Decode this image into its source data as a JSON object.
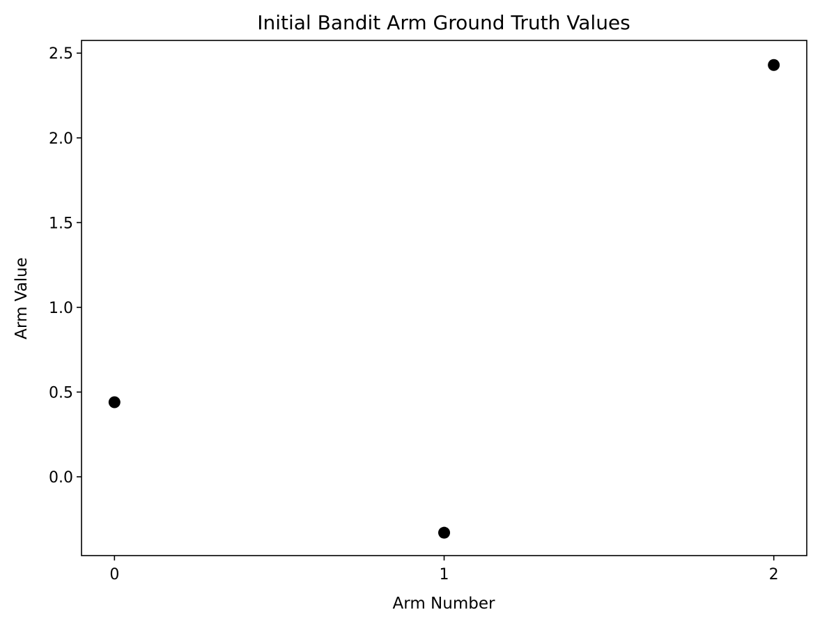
{
  "chart_data": {
    "type": "scatter",
    "title": "Initial Bandit Arm Ground Truth Values",
    "xlabel": "Arm Number",
    "ylabel": "Arm Value",
    "xlim": [
      -0.1,
      2.1
    ],
    "ylim": [
      -0.465,
      2.575
    ],
    "x_ticks": [
      0,
      1,
      2
    ],
    "x_tick_labels": [
      "0",
      "1",
      "2"
    ],
    "y_ticks": [
      0.0,
      0.5,
      1.0,
      1.5,
      2.0,
      2.5
    ],
    "y_tick_labels": [
      "0.0",
      "0.5",
      "1.0",
      "1.5",
      "2.0",
      "2.5"
    ],
    "grid": false,
    "series": [
      {
        "color": "#000000",
        "marker": "circle",
        "points": [
          {
            "x": 0,
            "y": 0.44
          },
          {
            "x": 1,
            "y": -0.33
          },
          {
            "x": 2,
            "y": 2.43
          }
        ]
      }
    ]
  }
}
